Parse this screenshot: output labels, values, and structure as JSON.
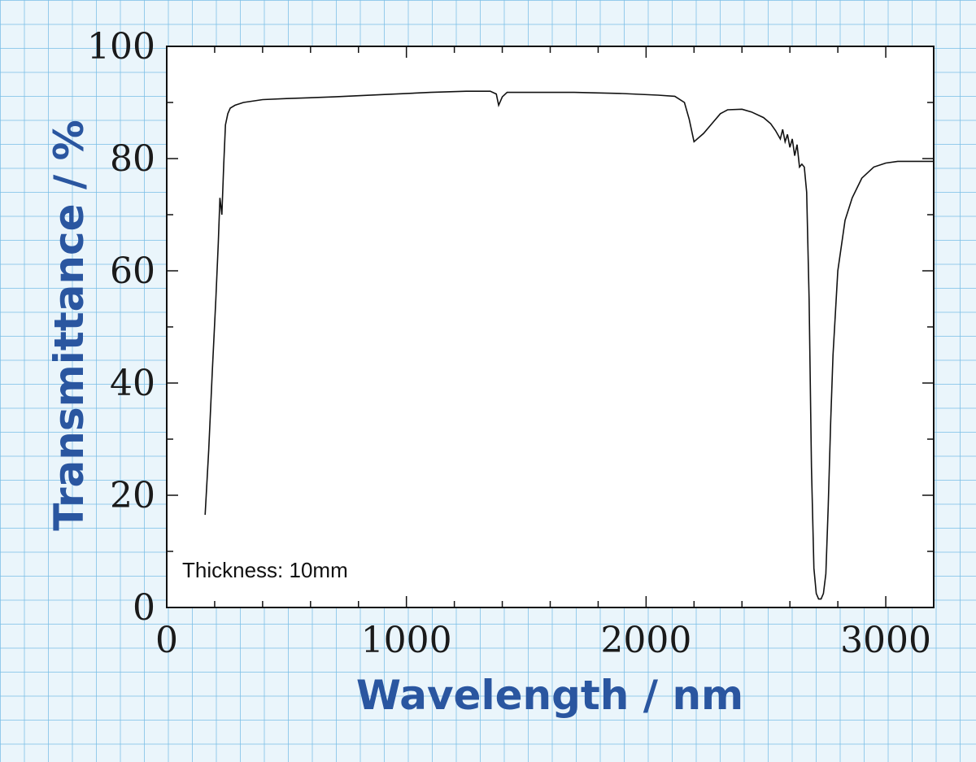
{
  "chart_data": {
    "type": "line",
    "xlabel": "Wavelength / nm",
    "ylabel": "Transmittance / %",
    "annotation": "Thickness: 10mm",
    "xlim": [
      0,
      3200
    ],
    "ylim": [
      0,
      100
    ],
    "x_ticks": [
      0,
      1000,
      2000,
      3000
    ],
    "y_ticks": [
      0,
      20,
      40,
      60,
      80,
      100
    ],
    "grid": false,
    "line_color": "#111111",
    "axis_title_color": "#2a56a0",
    "series": [
      {
        "x": [
          160,
          175,
          190,
          205,
          215,
          222,
          230,
          238,
          245,
          255,
          265,
          285,
          320,
          400,
          500,
          700,
          900,
          1100,
          1250,
          1350,
          1375,
          1385,
          1400,
          1420,
          1500,
          1700,
          1900,
          2050,
          2120,
          2160,
          2180,
          2200,
          2240,
          2280,
          2310,
          2340,
          2400,
          2440,
          2490,
          2520,
          2540,
          2560,
          2570,
          2580,
          2590,
          2600,
          2610,
          2620,
          2630,
          2640,
          2650,
          2660,
          2670,
          2680,
          2690,
          2700,
          2710,
          2720,
          2730,
          2740,
          2750,
          2760,
          2770,
          2780,
          2800,
          2830,
          2860,
          2900,
          2950,
          3000,
          3050,
          3100,
          3150,
          3200
        ],
        "y": [
          16.5,
          28,
          42,
          55,
          65,
          73,
          70,
          79,
          86,
          88,
          89,
          89.5,
          90,
          90.5,
          90.7,
          91,
          91.4,
          91.8,
          92,
          92,
          91.5,
          89.5,
          91,
          91.8,
          91.8,
          91.8,
          91.6,
          91.3,
          91.1,
          90,
          87,
          83,
          84.5,
          86.5,
          88,
          88.7,
          88.8,
          88.3,
          87.3,
          86.2,
          85,
          83.5,
          85.2,
          83,
          84.3,
          82,
          83.5,
          80.5,
          82.5,
          78.5,
          79,
          78.5,
          74,
          55,
          25,
          7,
          2.5,
          1.5,
          1.5,
          2.5,
          6,
          18,
          33,
          45,
          60,
          69,
          73,
          76.5,
          78.5,
          79.2,
          79.5,
          79.5,
          79.5,
          79.5
        ]
      }
    ]
  }
}
